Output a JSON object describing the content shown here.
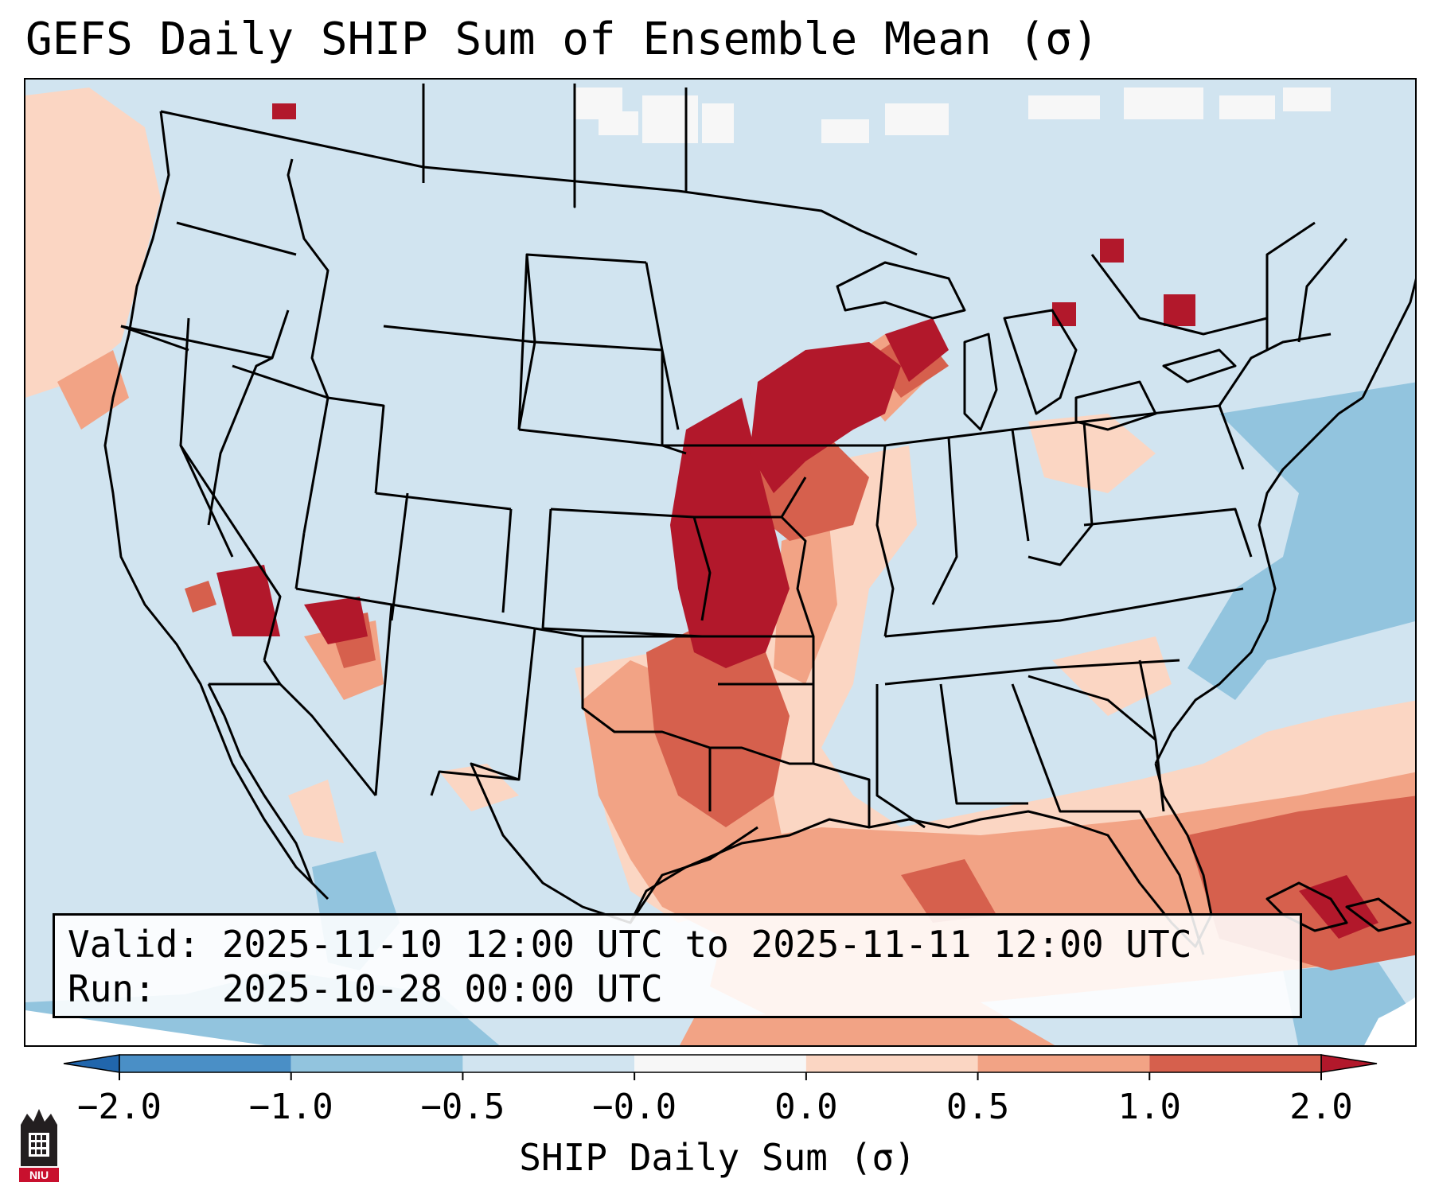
{
  "title": "GEFS Daily SHIP Sum of Ensemble Mean (σ)",
  "info": {
    "valid": "Valid: 2025-11-10 12:00 UTC to 2025-11-11 12:00 UTC",
    "run": "Run:   2025-10-28 00:00 UTC"
  },
  "colorbar": {
    "label": "SHIP Daily Sum (σ)",
    "ticks": [
      "−2.0",
      "−1.0",
      "−0.5",
      "−0.0",
      "0.0",
      "0.5",
      "1.0",
      "2.0"
    ],
    "colors": [
      "#2c6fb0",
      "#4a8fc6",
      "#92c4de",
      "#d1e4f0",
      "#f7f7f7",
      "#fbd6c3",
      "#f2a385",
      "#d6604d",
      "#b2182b"
    ],
    "under_color": "#2166ac",
    "over_color": "#b2182b"
  },
  "logo": {
    "text": "NIU",
    "icon": "university-tower-icon"
  },
  "map": {
    "background_color": "#d1e4f0",
    "anomaly_regions": [
      {
        "name": "great-plains-core",
        "level": 2.0
      },
      {
        "name": "upper-midwest",
        "level": 2.0
      },
      {
        "name": "southern-plains",
        "level": 1.0
      },
      {
        "name": "caribbean-gulf",
        "level": 1.0
      },
      {
        "name": "arizona-nevada",
        "level": 2.0
      },
      {
        "name": "atlantic-offshore",
        "level": -0.5
      }
    ]
  }
}
